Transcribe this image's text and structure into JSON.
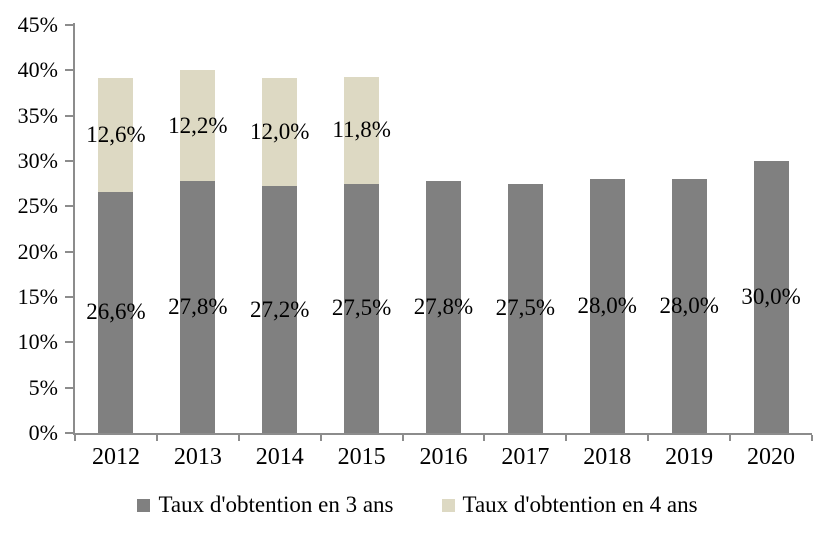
{
  "chart_data": {
    "type": "bar",
    "stacked": true,
    "title": "",
    "xlabel": "",
    "ylabel": "",
    "categories": [
      "2012",
      "2013",
      "2014",
      "2015",
      "2016",
      "2017",
      "2018",
      "2019",
      "2020"
    ],
    "series": [
      {
        "name": "Taux d'obtention en 3 ans",
        "color": "#808080",
        "values": [
          26.6,
          27.8,
          27.2,
          27.5,
          27.8,
          27.5,
          28.0,
          28.0,
          30.0
        ],
        "labels": [
          "26,6%",
          "27,8%",
          "27,2%",
          "27,5%",
          "27,8%",
          "27,5%",
          "28,0%",
          "28,0%",
          "30,0%"
        ]
      },
      {
        "name": "Taux d'obtention en 4 ans",
        "color": "#DDD9C3",
        "values": [
          12.6,
          12.2,
          12.0,
          11.8,
          0,
          0,
          0,
          0,
          0
        ],
        "labels": [
          "12,6%",
          "12,2%",
          "12,0%",
          "11,8%",
          "",
          "",
          "",
          "",
          ""
        ]
      }
    ],
    "ylim": [
      0,
      45
    ],
    "ytick_step": 5,
    "ytick_labels": [
      "0%",
      "5%",
      "10%",
      "15%",
      "20%",
      "25%",
      "30%",
      "35%",
      "40%",
      "45%"
    ],
    "grid": false,
    "legend_position": "bottom",
    "colors": {
      "axis": "#8C8C8C",
      "text": "#000000",
      "background": "#FFFFFF"
    }
  }
}
